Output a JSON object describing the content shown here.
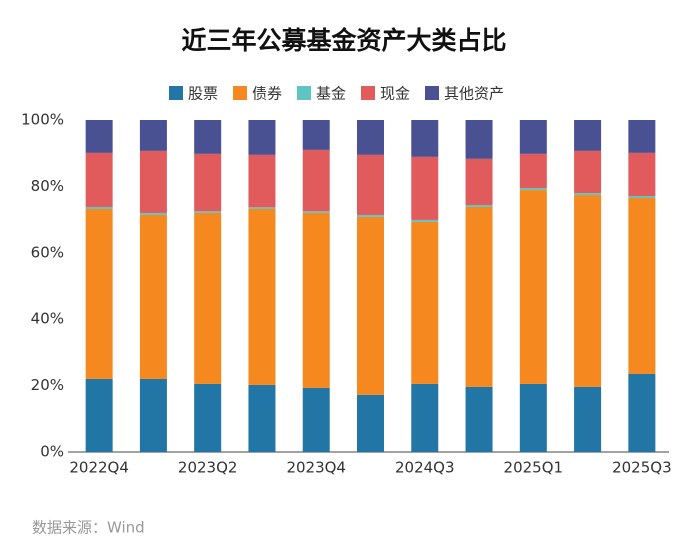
{
  "chart_data": {
    "type": "stacked_bar",
    "title": "近三年公募基金资产大类占比",
    "categories": [
      "2022Q4",
      null,
      "2023Q2",
      null,
      "2023Q4",
      null,
      "2024Q3",
      null,
      "2025Q1",
      null,
      "2025Q3"
    ],
    "series": [
      {
        "name": "股票",
        "color": "#2176a5",
        "values": [
          22,
          22,
          20.5,
          20.2,
          19.3,
          17.2,
          20.5,
          19.6,
          20.5,
          19.6,
          23.5
        ]
      },
      {
        "name": "债券",
        "color": "#f5881f",
        "values": [
          51.2,
          49.4,
          51.5,
          53,
          52.7,
          53.6,
          48.8,
          54.2,
          58.4,
          57.8,
          53
        ]
      },
      {
        "name": "基金",
        "color": "#5fc5c3",
        "values": [
          0.6,
          0.6,
          0.5,
          0.5,
          0.5,
          0.6,
          0.6,
          0.6,
          0.6,
          0.6,
          0.6
        ]
      },
      {
        "name": "现金",
        "color": "#e15b5d",
        "values": [
          16.3,
          18.7,
          17.3,
          15.8,
          18.5,
          18.1,
          19,
          13.9,
          10.3,
          12.7,
          13
        ]
      },
      {
        "name": "其他资产",
        "color": "#4a5192",
        "values": [
          9.9,
          9.3,
          10.2,
          10.5,
          9,
          10.5,
          11.1,
          11.7,
          10.2,
          9.3,
          9.9
        ]
      }
    ],
    "ylim": [
      0,
      100
    ],
    "yticks": [
      {
        "value": 0,
        "label": "0%"
      },
      {
        "value": 20,
        "label": "20%"
      },
      {
        "value": 40,
        "label": "40%"
      },
      {
        "value": 60,
        "label": "60%"
      },
      {
        "value": 80,
        "label": "80%"
      },
      {
        "value": 100,
        "label": "100%"
      }
    ],
    "legend_position": "top",
    "source": "数据来源：Wind"
  }
}
